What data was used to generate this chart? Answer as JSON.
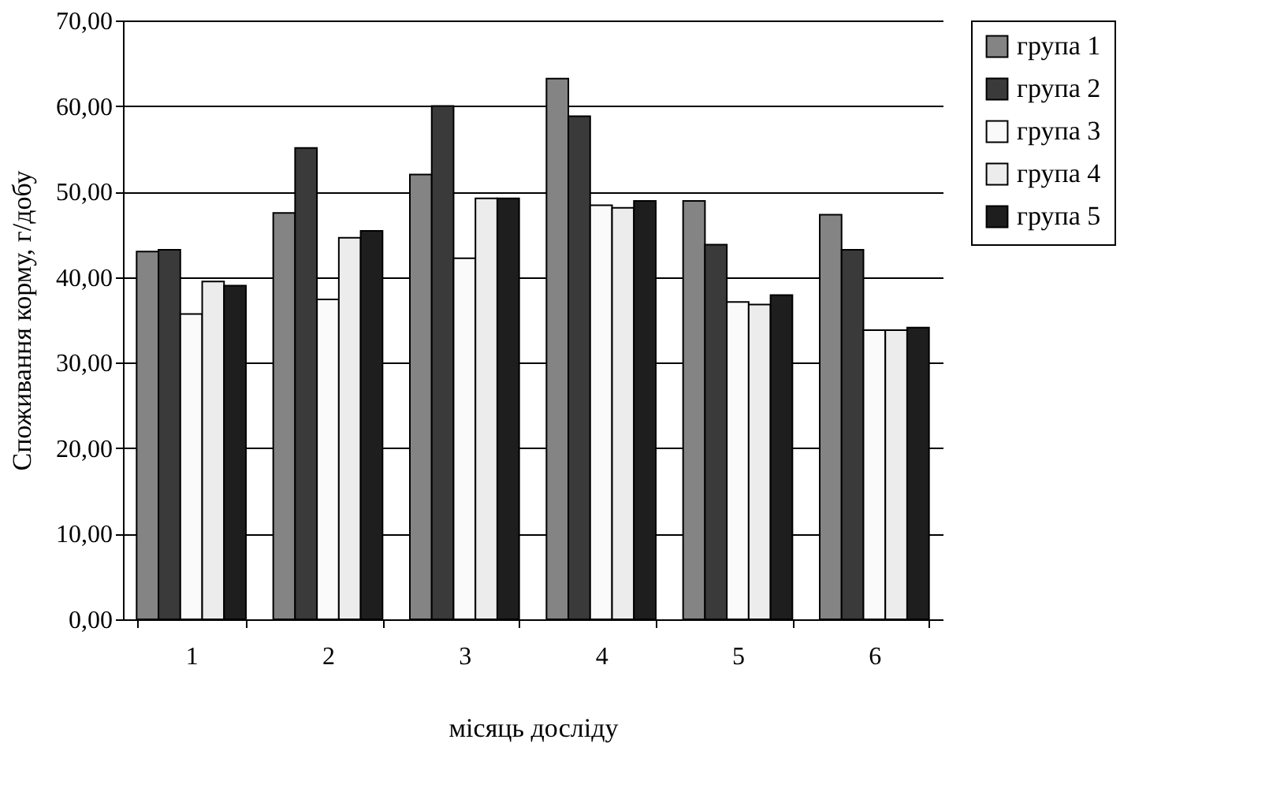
{
  "chart_data": {
    "type": "bar",
    "xlabel": "місяць досліду",
    "ylabel": "Споживання корму, г/добу",
    "categories": [
      "1",
      "2",
      "3",
      "4",
      "5",
      "6"
    ],
    "series": [
      {
        "name": "група 1",
        "color": "#848484",
        "values": [
          43.0,
          47.5,
          52.0,
          63.2,
          48.9,
          47.3
        ]
      },
      {
        "name": "група 2",
        "color": "#3a3a3a",
        "values": [
          43.2,
          55.1,
          60.0,
          58.8,
          43.8,
          43.2
        ]
      },
      {
        "name": "група 3",
        "color": "#fafafa",
        "values": [
          35.7,
          37.4,
          42.2,
          48.4,
          37.1,
          33.8
        ]
      },
      {
        "name": "група 4",
        "color": "#ececec",
        "values": [
          39.5,
          44.6,
          49.2,
          48.1,
          36.8,
          33.8
        ]
      },
      {
        "name": "група 5",
        "color": "#1e1e1e",
        "values": [
          39.0,
          45.4,
          49.2,
          48.9,
          37.9,
          34.1
        ]
      }
    ],
    "ylim": [
      0,
      70
    ],
    "yticks": [
      {
        "value": 0,
        "label": "0,00"
      },
      {
        "value": 10,
        "label": "10,00"
      },
      {
        "value": 20,
        "label": "20,00"
      },
      {
        "value": 30,
        "label": "30,00"
      },
      {
        "value": 40,
        "label": "40,00"
      },
      {
        "value": 50,
        "label": "50,00"
      },
      {
        "value": 60,
        "label": "60,00"
      },
      {
        "value": 70,
        "label": "70,00"
      }
    ],
    "grid": "y",
    "legend": "right"
  }
}
